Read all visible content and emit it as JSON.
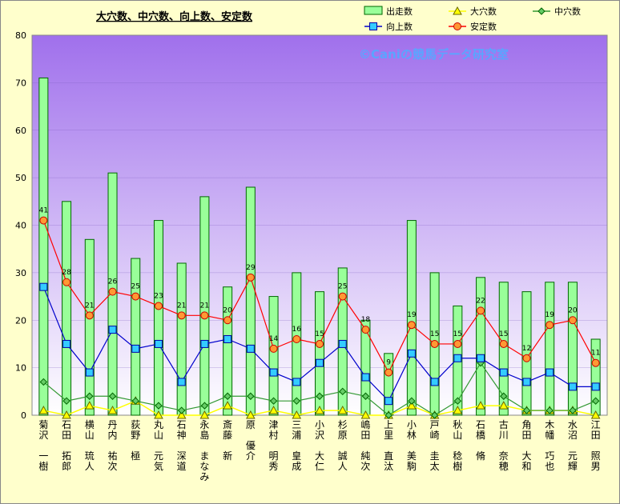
{
  "chart_data": {
    "type": "bar",
    "title": "大穴数、中穴数、向上数、安定数",
    "watermark": "©Caniの競馬データ研究室",
    "ylim": [
      0,
      80
    ],
    "yticks": [
      0,
      10,
      20,
      30,
      40,
      50,
      60,
      70,
      80
    ],
    "categories": [
      "菊沢 一樹",
      "石田 拓郎",
      "横山 琉人",
      "丹内 祐次",
      "荻野 極",
      "丸山 元気",
      "石神 深道",
      "永島 まなみ",
      "斎藤 新",
      "原 優介",
      "津村 明秀",
      "三浦 皇成",
      "小沢 大仁",
      "杉原 誠人",
      "嶋田 純次",
      "上里 直汰",
      "小林 美駒",
      "戸崎 圭太",
      "秋山 稔樹",
      "石橋 脩",
      "古川 奈穂",
      "角田 大和",
      "木幡 巧也",
      "水沼 元輝",
      "江田 照男"
    ],
    "series": [
      {
        "name": "出走数",
        "type": "bar",
        "color": "#99ff99",
        "values": [
          71,
          45,
          37,
          51,
          33,
          41,
          32,
          46,
          27,
          48,
          25,
          30,
          26,
          31,
          20,
          13,
          41,
          30,
          23,
          29,
          28,
          26,
          28,
          28,
          16
        ]
      },
      {
        "name": "大穴数",
        "type": "line",
        "color": "#ffff00",
        "values": [
          1,
          0,
          2,
          1,
          3,
          0,
          0,
          0,
          2,
          0,
          1,
          0,
          1,
          1,
          0,
          0,
          2,
          0,
          1,
          2,
          2,
          1,
          1,
          1,
          0
        ]
      },
      {
        "name": "中穴数",
        "type": "line",
        "color": "#339933",
        "values": [
          7,
          3,
          4,
          4,
          3,
          2,
          1,
          2,
          4,
          4,
          3,
          3,
          4,
          5,
          4,
          0,
          3,
          0,
          3,
          11,
          4,
          1,
          1,
          1,
          3
        ]
      },
      {
        "name": "向上数",
        "type": "line",
        "color": "#0000cc",
        "values": [
          27,
          15,
          9,
          18,
          14,
          15,
          7,
          15,
          16,
          14,
          9,
          7,
          11,
          15,
          8,
          3,
          13,
          7,
          12,
          12,
          9,
          7,
          9,
          6,
          6
        ]
      },
      {
        "name": "安定数",
        "type": "line",
        "color": "#ff0000",
        "values": [
          41,
          28,
          21,
          26,
          25,
          23,
          21,
          21,
          20,
          29,
          14,
          16,
          15,
          25,
          18,
          9,
          19,
          15,
          15,
          22,
          15,
          12,
          19,
          20,
          11
        ]
      }
    ]
  }
}
